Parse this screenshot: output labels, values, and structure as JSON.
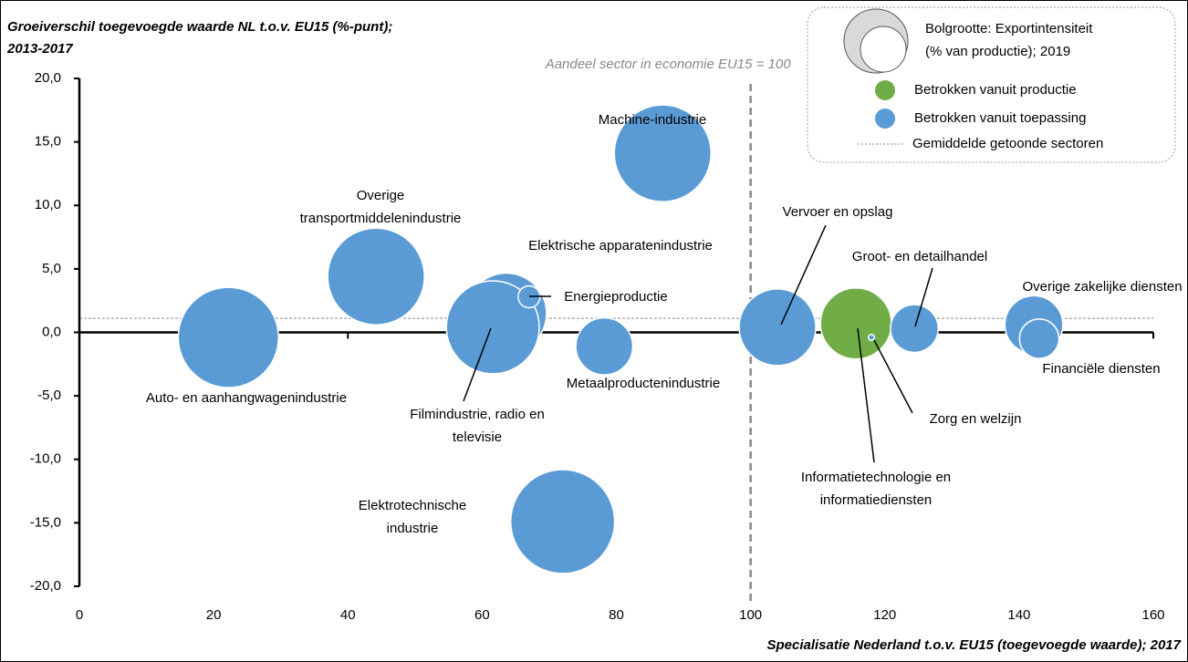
{
  "chart_data": {
    "type": "scatter",
    "y_title": [
      "Groeiverschil toegevoegde waarde NL t.o.v. EU15 (%-punt);",
      "2013-2017"
    ],
    "x_title": "Specialisatie Nederland t.o.v. EU15 (toegevoegde waarde); 2017",
    "reference_label": "Aandeel sector in economie EU15 = 100",
    "reference_x": 100,
    "mean_y": 1.1,
    "mean_label": "Gemiddelde getoonde sectoren",
    "size_legend": [
      "Bolgrootte: Exportintensiteit",
      "(% van productie); 2019"
    ],
    "xlim": [
      0,
      160
    ],
    "xticks": [
      0,
      20,
      40,
      60,
      80,
      100,
      120,
      140,
      160
    ],
    "ylim": [
      -20,
      20
    ],
    "yticks": [
      {
        "value": -20,
        "label": "-20,0"
      },
      {
        "value": -15,
        "label": "-15,0"
      },
      {
        "value": -10,
        "label": "-10,0"
      },
      {
        "value": -5,
        "label": "-5,0"
      },
      {
        "value": 0,
        "label": "0,0"
      },
      {
        "value": 5,
        "label": "5,0"
      },
      {
        "value": 10,
        "label": "10,0"
      },
      {
        "value": 15,
        "label": "15,0"
      },
      {
        "value": 20,
        "label": "20,0"
      }
    ],
    "series": [
      {
        "name": "Betrokken vanuit productie",
        "color": "#70ad47",
        "labels": [
          [
            "Informatietechnologie en",
            "informatiediensten"
          ]
        ],
        "x": [
          115.7
        ],
        "values": [
          0.7
        ],
        "sizes": [
          42
        ]
      },
      {
        "name": "Betrokken vanuit toepassing",
        "color": "#5b9bd5",
        "labels": [
          [
            "Auto- en aanhangwagenindustrie"
          ],
          [
            "Overige",
            "transportmiddelenindustrie"
          ],
          [
            "Machine-industrie"
          ],
          [
            "Elektrische apparatenindustrie"
          ],
          [
            "Filmindustrie, radio en",
            "televisie"
          ],
          [
            "Energieproductie"
          ],
          [
            "Metaalproductenindustrie"
          ],
          [
            "Elektrotechnische",
            "industrie"
          ],
          [
            "Vervoer en opslag"
          ],
          [
            "Groot- en detailhandel"
          ],
          [
            "Overige zakelijke diensten"
          ],
          [
            "Financiële diensten"
          ],
          [
            "Zorg en welzijn"
          ]
        ],
        "x": [
          22.2,
          44.2,
          86.9,
          63.6,
          61.6,
          67.0,
          78.2,
          72.0,
          104.0,
          124.4,
          142.2,
          143.0,
          118.0
        ],
        "values": [
          -0.4,
          4.4,
          14.1,
          1.5,
          0.4,
          2.8,
          -1.1,
          -14.9,
          0.4,
          0.3,
          0.6,
          -0.5,
          -0.4
        ],
        "sizes": [
          84,
          78,
          78,
          54,
          72,
          4,
          27,
          90,
          49,
          19,
          28,
          13,
          0.3
        ]
      }
    ]
  }
}
